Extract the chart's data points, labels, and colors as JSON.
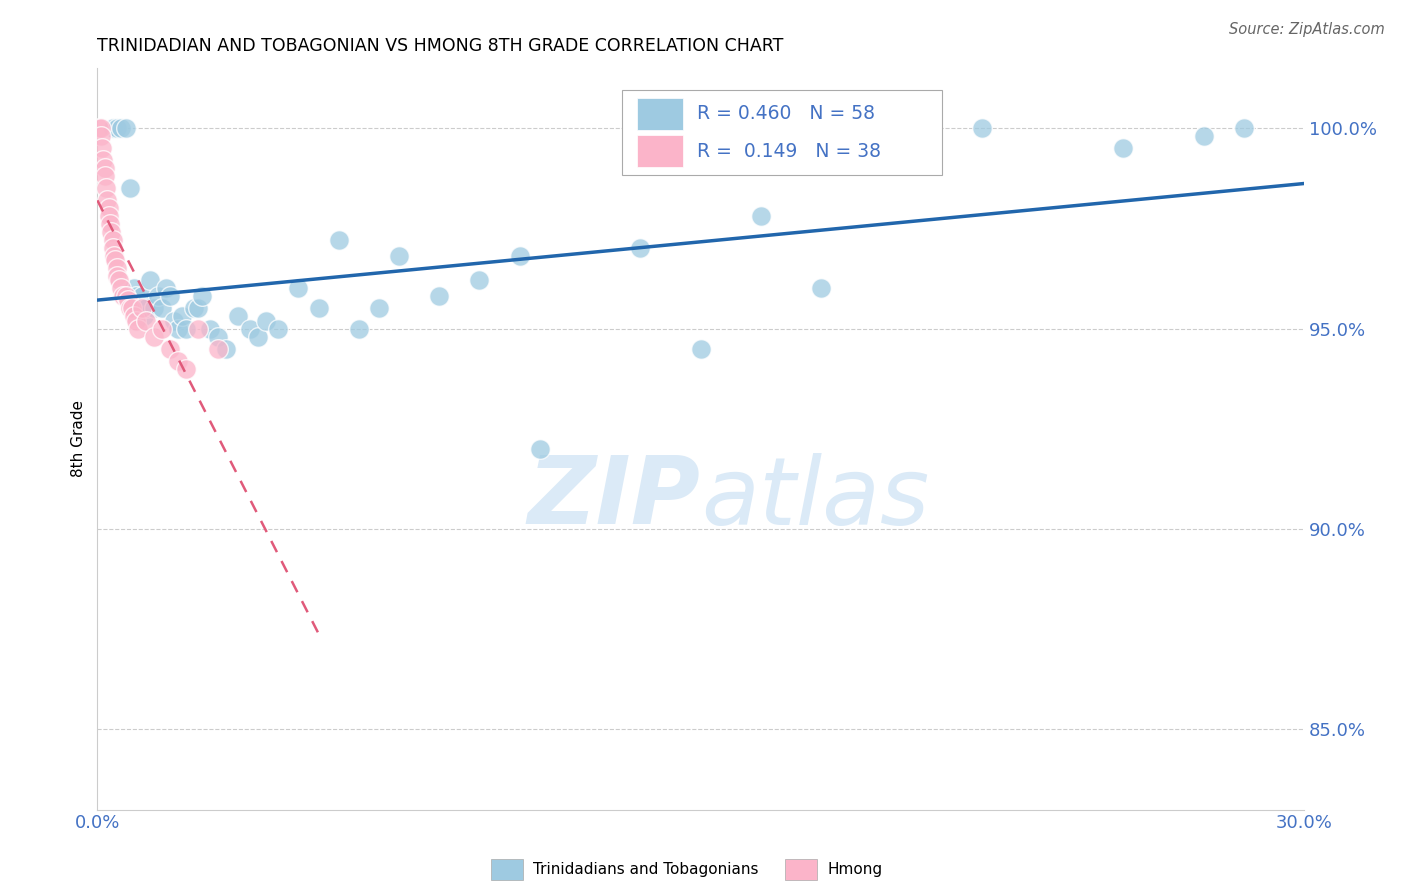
{
  "title": "TRINIDADIAN AND TOBAGONIAN VS HMONG 8TH GRADE CORRELATION CHART",
  "source": "Source: ZipAtlas.com",
  "ylabel": "8th Grade",
  "xlim": [
    0.0,
    30.0
  ],
  "ylim": [
    83.0,
    101.5
  ],
  "yticks": [
    85.0,
    90.0,
    95.0,
    100.0
  ],
  "ytick_labels": [
    "85.0%",
    "90.0%",
    "95.0%",
    "100.0%"
  ],
  "xticks": [
    0.0,
    5.0,
    10.0,
    15.0,
    20.0,
    25.0,
    30.0
  ],
  "xtick_labels": [
    "0.0%",
    "",
    "",
    "",
    "",
    "",
    "30.0%"
  ],
  "color_blue": "#9ecae1",
  "color_pink": "#fbb4c9",
  "color_blue_line": "#2166ac",
  "color_pink_line": "#e05a7a",
  "color_axis_labels": "#4472c4",
  "watermark_zip": "ZIP",
  "watermark_atlas": "atlas",
  "watermark_color": "#dbeaf7",
  "blue_dots_x": [
    0.4,
    0.5,
    0.6,
    0.7,
    0.8,
    0.9,
    0.95,
    1.0,
    1.05,
    1.1,
    1.15,
    1.2,
    1.3,
    1.4,
    1.5,
    1.6,
    1.7,
    1.8,
    1.9,
    2.0,
    2.1,
    2.2,
    2.4,
    2.5,
    2.6,
    2.8,
    3.0,
    3.2,
    3.5,
    3.8,
    4.0,
    4.2,
    4.5,
    5.0,
    5.5,
    6.0,
    6.5,
    7.0,
    7.5,
    8.5,
    9.5,
    10.5,
    11.0,
    13.5,
    15.0,
    16.5,
    18.0,
    22.0,
    25.5,
    27.5,
    28.5
  ],
  "blue_dots_y": [
    100.0,
    100.0,
    100.0,
    100.0,
    98.5,
    96.0,
    95.8,
    95.5,
    95.5,
    95.8,
    95.3,
    95.5,
    96.2,
    95.5,
    95.8,
    95.5,
    96.0,
    95.8,
    95.2,
    95.0,
    95.3,
    95.0,
    95.5,
    95.5,
    95.8,
    95.0,
    94.8,
    94.5,
    95.3,
    95.0,
    94.8,
    95.2,
    95.0,
    96.0,
    95.5,
    97.2,
    95.0,
    95.5,
    96.8,
    95.8,
    96.2,
    96.8,
    92.0,
    97.0,
    94.5,
    97.8,
    96.0,
    100.0,
    99.5,
    99.8,
    100.0
  ],
  "pink_dots_x": [
    0.05,
    0.08,
    0.1,
    0.12,
    0.15,
    0.18,
    0.2,
    0.22,
    0.25,
    0.28,
    0.3,
    0.32,
    0.35,
    0.38,
    0.4,
    0.42,
    0.45,
    0.48,
    0.5,
    0.55,
    0.6,
    0.65,
    0.7,
    0.75,
    0.8,
    0.85,
    0.9,
    0.95,
    1.0,
    1.1,
    1.2,
    1.4,
    1.6,
    1.8,
    2.0,
    2.2,
    2.5,
    3.0
  ],
  "pink_dots_y": [
    100.0,
    100.0,
    99.8,
    99.5,
    99.2,
    99.0,
    98.8,
    98.5,
    98.2,
    98.0,
    97.8,
    97.6,
    97.4,
    97.2,
    97.0,
    96.8,
    96.7,
    96.5,
    96.3,
    96.2,
    96.0,
    95.8,
    95.8,
    95.7,
    95.5,
    95.5,
    95.3,
    95.2,
    95.0,
    95.5,
    95.2,
    94.8,
    95.0,
    94.5,
    94.2,
    94.0,
    95.0,
    94.5
  ],
  "blue_trend_x0": 0.0,
  "blue_trend_x1": 30.0,
  "pink_trend_x0": 0.0,
  "pink_trend_x1": 5.5
}
